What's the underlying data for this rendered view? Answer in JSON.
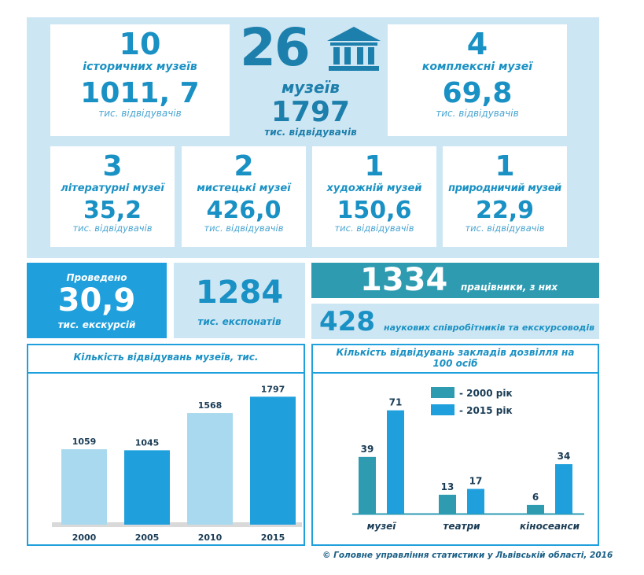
{
  "total": {
    "count": "26",
    "label": "музеїв",
    "visitors": "1797",
    "visitors_unit": "тис. відвідувачів"
  },
  "cards_top": [
    {
      "count": "10",
      "label": "історичних музеїв",
      "visitors": "1011, 7",
      "unit": "тис. відвідувачів"
    },
    {
      "count": "4",
      "label": "комплексні музеї",
      "visitors": "69,8",
      "unit": "тис. відвідувачів"
    }
  ],
  "cards_mid": [
    {
      "count": "3",
      "label": "літературні музеї",
      "visitors": "35,2",
      "unit": "тис. відвідувачів"
    },
    {
      "count": "2",
      "label": "мистецькі музеї",
      "visitors": "426,0",
      "unit": "тис. відвідувачів"
    },
    {
      "count": "1",
      "label": "художній музей",
      "visitors": "150,6",
      "unit": "тис. відвідувачів"
    },
    {
      "count": "1",
      "label": "природничий музей",
      "visitors": "22,9",
      "unit": "тис. відвідувачів"
    }
  ],
  "excursions": {
    "title": "Проведено",
    "value": "30,9",
    "unit": "тис. екскурсій"
  },
  "exhibits": {
    "value": "1284",
    "unit": "тис. експонатів"
  },
  "staff": {
    "total": "1334",
    "total_label": "працівники, з них",
    "research": "428",
    "research_label": "наукових співробітників та екскурсоводів"
  },
  "footer": "Головне управління статистики у Львівській області, 2016",
  "colors": {
    "light": "#a9d9ee",
    "blue": "#1fa0dd",
    "teal": "#2e9bb1",
    "dark": "#1d7fac"
  },
  "chart_data": [
    {
      "type": "bar",
      "title": "Кількість відвідувань музеїв, тис.",
      "categories": [
        "2000",
        "2005",
        "2010",
        "2015"
      ],
      "values": [
        1059,
        1045,
        1568,
        1797
      ],
      "ylim": [
        0,
        1900
      ]
    },
    {
      "type": "bar",
      "title": "Кількість відвідувань закладів дозвілля на 100 осіб",
      "categories": [
        "музеї",
        "театри",
        "кіносеанси"
      ],
      "series": [
        {
          "name": "- 2000 рік",
          "values": [
            39,
            13,
            6
          ]
        },
        {
          "name": "- 2015 рік",
          "values": [
            71,
            17,
            34
          ]
        }
      ],
      "legend": "top-center",
      "ylim": [
        0,
        80
      ]
    }
  ]
}
